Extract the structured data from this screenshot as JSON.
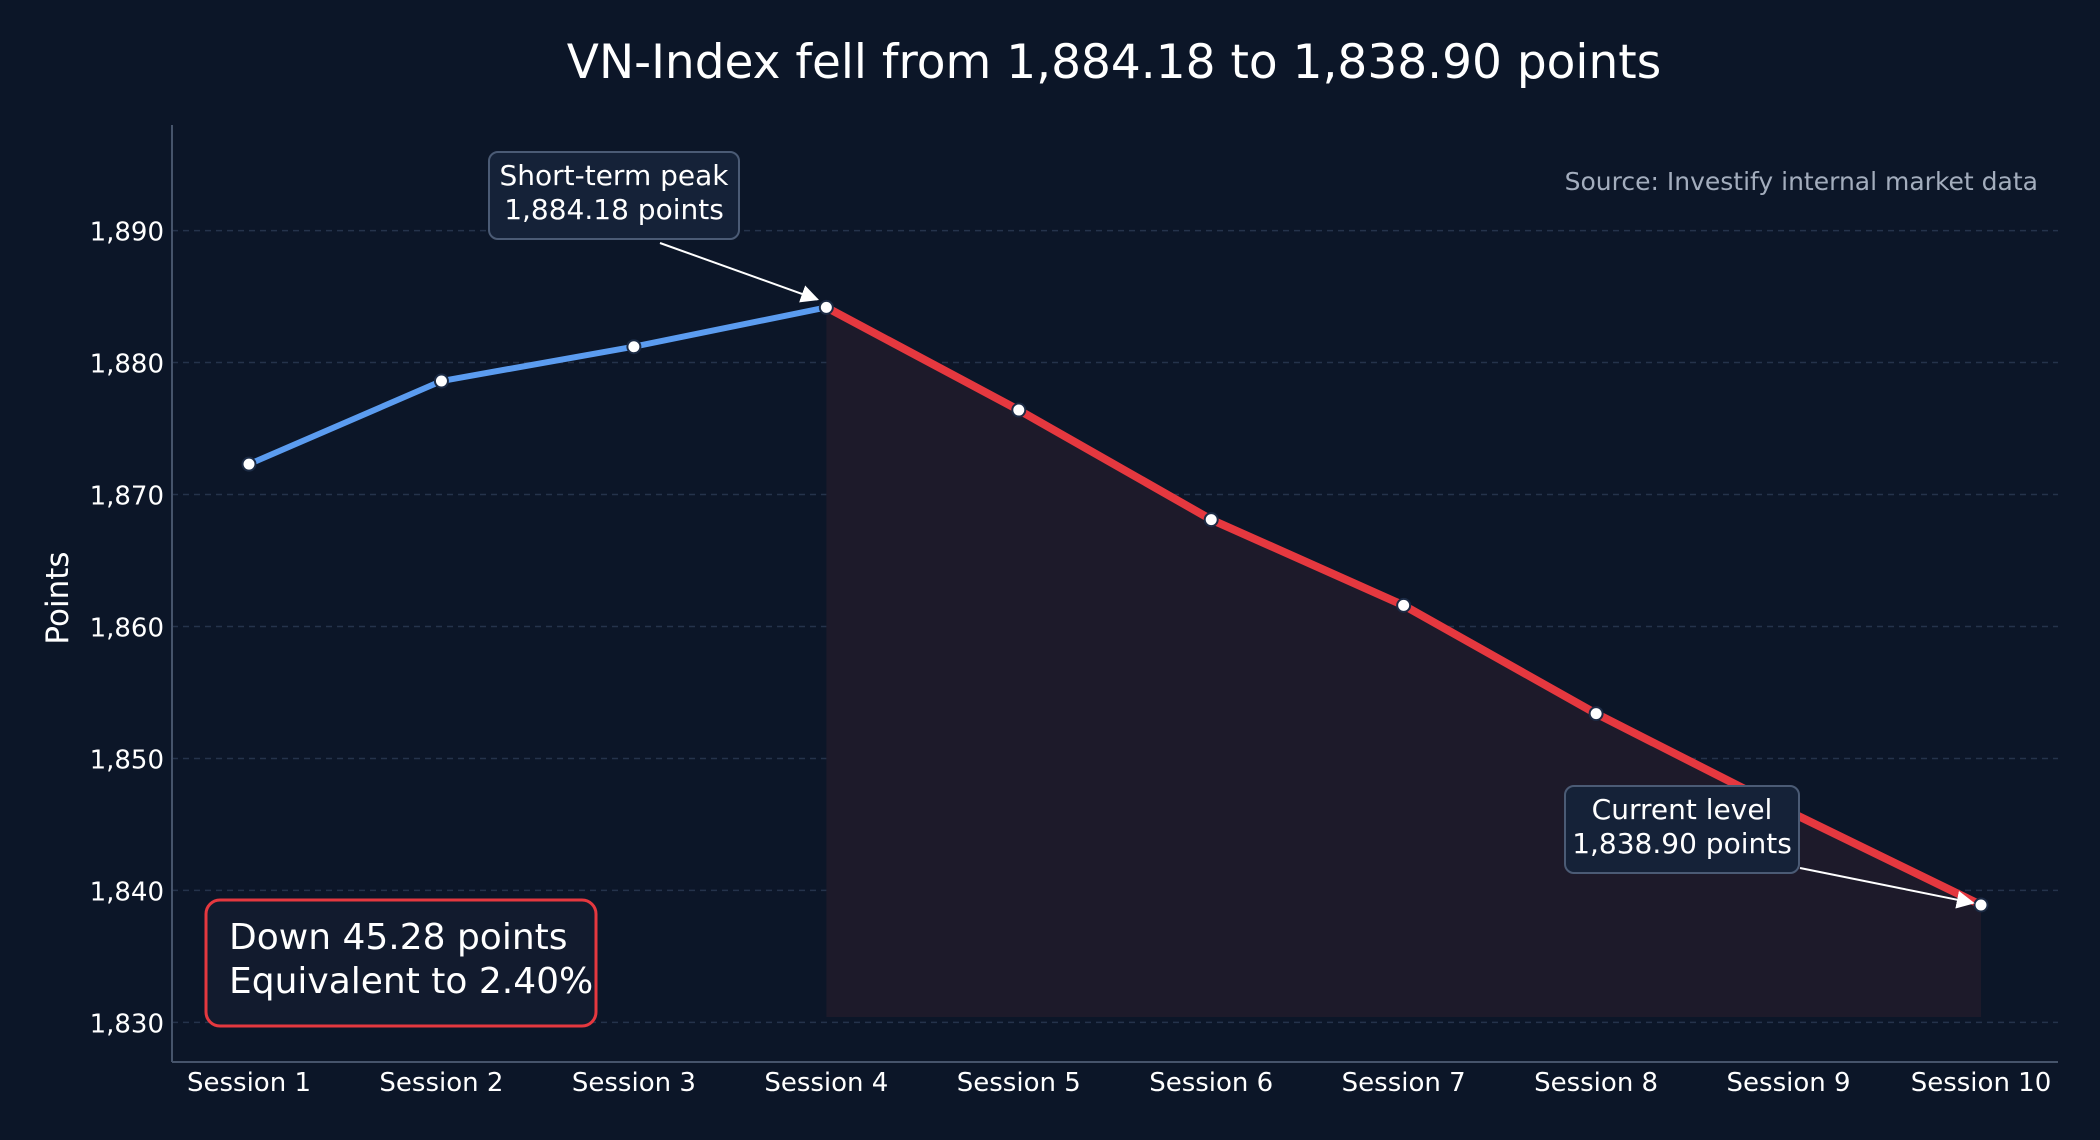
{
  "chart_data": {
    "type": "line",
    "title": "VN-Index fell from 1,884.18 to 1,838.90 points",
    "ylabel": "Points",
    "xlabel": "",
    "categories": [
      "Session 1",
      "Session 2",
      "Session 3",
      "Session 4",
      "Session 5",
      "Session 6",
      "Session 7",
      "Session 8",
      "Session 9",
      "Session 10"
    ],
    "values": [
      1872.3,
      1878.6,
      1881.2,
      1884.18,
      1876.4,
      1868.1,
      1861.6,
      1853.4,
      1846.0,
      1838.9
    ],
    "ylim": [
      1827,
      1898
    ],
    "yticks": [
      1830,
      1840,
      1850,
      1860,
      1870,
      1880,
      1890
    ],
    "ytick_labels": [
      "1,830",
      "1,840",
      "1,850",
      "1,860",
      "1,870",
      "1,880",
      "1,890"
    ],
    "grid": "horizontal-dashed",
    "rising_color": "#5b9cf0",
    "falling_color": "#e5383f",
    "peak_index": 3,
    "source_note": "Source: Investify internal market data",
    "annotations": {
      "peak": {
        "index": 3,
        "line1": "Short-term peak",
        "line2": "1,884.18 points"
      },
      "current": {
        "index": 9,
        "line1": "Current level",
        "line2": "1,838.90 points"
      }
    },
    "summary": {
      "line1": "Down 45.28 points",
      "line2": "Equivalent to 2.40%",
      "border_color": "#e5383f"
    }
  }
}
